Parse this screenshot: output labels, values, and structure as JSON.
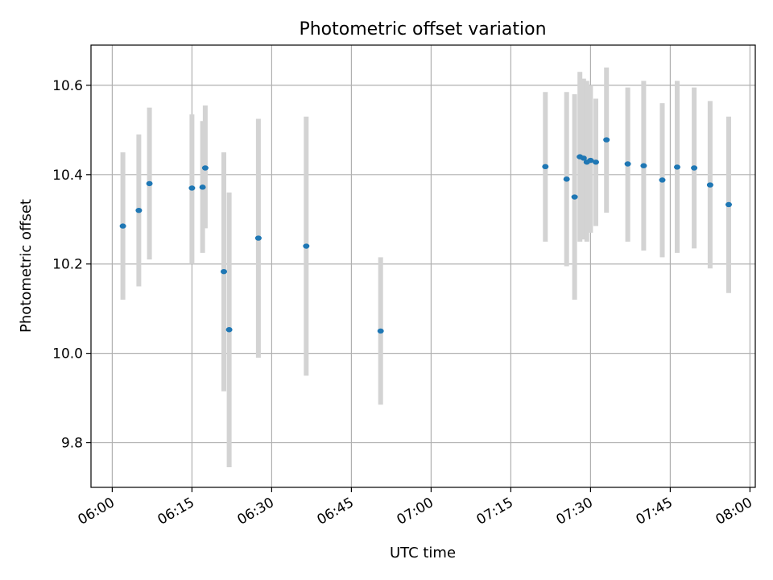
{
  "chart_data": {
    "type": "scatter",
    "title": "Photometric offset variation",
    "xlabel": "UTC time",
    "ylabel": "Photometric offset",
    "xlim": [
      "05:56",
      "08:01"
    ],
    "ylim": [
      9.7,
      10.69
    ],
    "grid": true,
    "x_ticks": [
      "06:00",
      "06:15",
      "06:30",
      "06:45",
      "07:00",
      "07:15",
      "07:30",
      "07:45",
      "08:00"
    ],
    "y_ticks": [
      9.8,
      10.0,
      10.2,
      10.4,
      10.6
    ],
    "point_color": "#1f77b4",
    "error_bar_color": "#d3d3d3",
    "series": [
      {
        "points": [
          {
            "time": "06:02",
            "y": 10.285,
            "err_low": 10.12,
            "err_high": 10.45
          },
          {
            "time": "06:05",
            "y": 10.32,
            "err_low": 10.15,
            "err_high": 10.49
          },
          {
            "time": "06:07",
            "y": 10.38,
            "err_low": 10.21,
            "err_high": 10.55
          },
          {
            "time": "06:15",
            "y": 10.37,
            "err_low": 10.2,
            "err_high": 10.535
          },
          {
            "time": "06:17",
            "y": 10.372,
            "err_low": 10.225,
            "err_high": 10.52
          },
          {
            "time": "06:17.5",
            "y": 10.415,
            "err_low": 10.28,
            "err_high": 10.555
          },
          {
            "time": "06:21",
            "y": 10.183,
            "err_low": 9.915,
            "err_high": 10.45
          },
          {
            "time": "06:22",
            "y": 10.053,
            "err_low": 9.745,
            "err_high": 10.36
          },
          {
            "time": "06:27.5",
            "y": 10.258,
            "err_low": 9.99,
            "err_high": 10.525
          },
          {
            "time": "06:36.5",
            "y": 10.24,
            "err_low": 9.95,
            "err_high": 10.53
          },
          {
            "time": "06:50.5",
            "y": 10.05,
            "err_low": 9.885,
            "err_high": 10.215
          },
          {
            "time": "07:21.5",
            "y": 10.418,
            "err_low": 10.25,
            "err_high": 10.585
          },
          {
            "time": "07:25.5",
            "y": 10.39,
            "err_low": 10.195,
            "err_high": 10.585
          },
          {
            "time": "07:27",
            "y": 10.35,
            "err_low": 10.12,
            "err_high": 10.58
          },
          {
            "time": "07:28",
            "y": 10.44,
            "err_low": 10.25,
            "err_high": 10.63
          },
          {
            "time": "07:28.7",
            "y": 10.437,
            "err_low": 10.255,
            "err_high": 10.615
          },
          {
            "time": "07:29.3",
            "y": 10.428,
            "err_low": 10.25,
            "err_high": 10.61
          },
          {
            "time": "07:30",
            "y": 10.432,
            "err_low": 10.27,
            "err_high": 10.6
          },
          {
            "time": "07:31",
            "y": 10.428,
            "err_low": 10.285,
            "err_high": 10.57
          },
          {
            "time": "07:33",
            "y": 10.478,
            "err_low": 10.315,
            "err_high": 10.64
          },
          {
            "time": "07:37",
            "y": 10.424,
            "err_low": 10.25,
            "err_high": 10.595
          },
          {
            "time": "07:40",
            "y": 10.42,
            "err_low": 10.23,
            "err_high": 10.61
          },
          {
            "time": "07:43.5",
            "y": 10.388,
            "err_low": 10.215,
            "err_high": 10.56
          },
          {
            "time": "07:46.3",
            "y": 10.417,
            "err_low": 10.225,
            "err_high": 10.61
          },
          {
            "time": "07:49.5",
            "y": 10.415,
            "err_low": 10.235,
            "err_high": 10.595
          },
          {
            "time": "07:52.5",
            "y": 10.377,
            "err_low": 10.19,
            "err_high": 10.565
          },
          {
            "time": "07:56",
            "y": 10.333,
            "err_low": 10.135,
            "err_high": 10.53
          }
        ]
      }
    ]
  }
}
